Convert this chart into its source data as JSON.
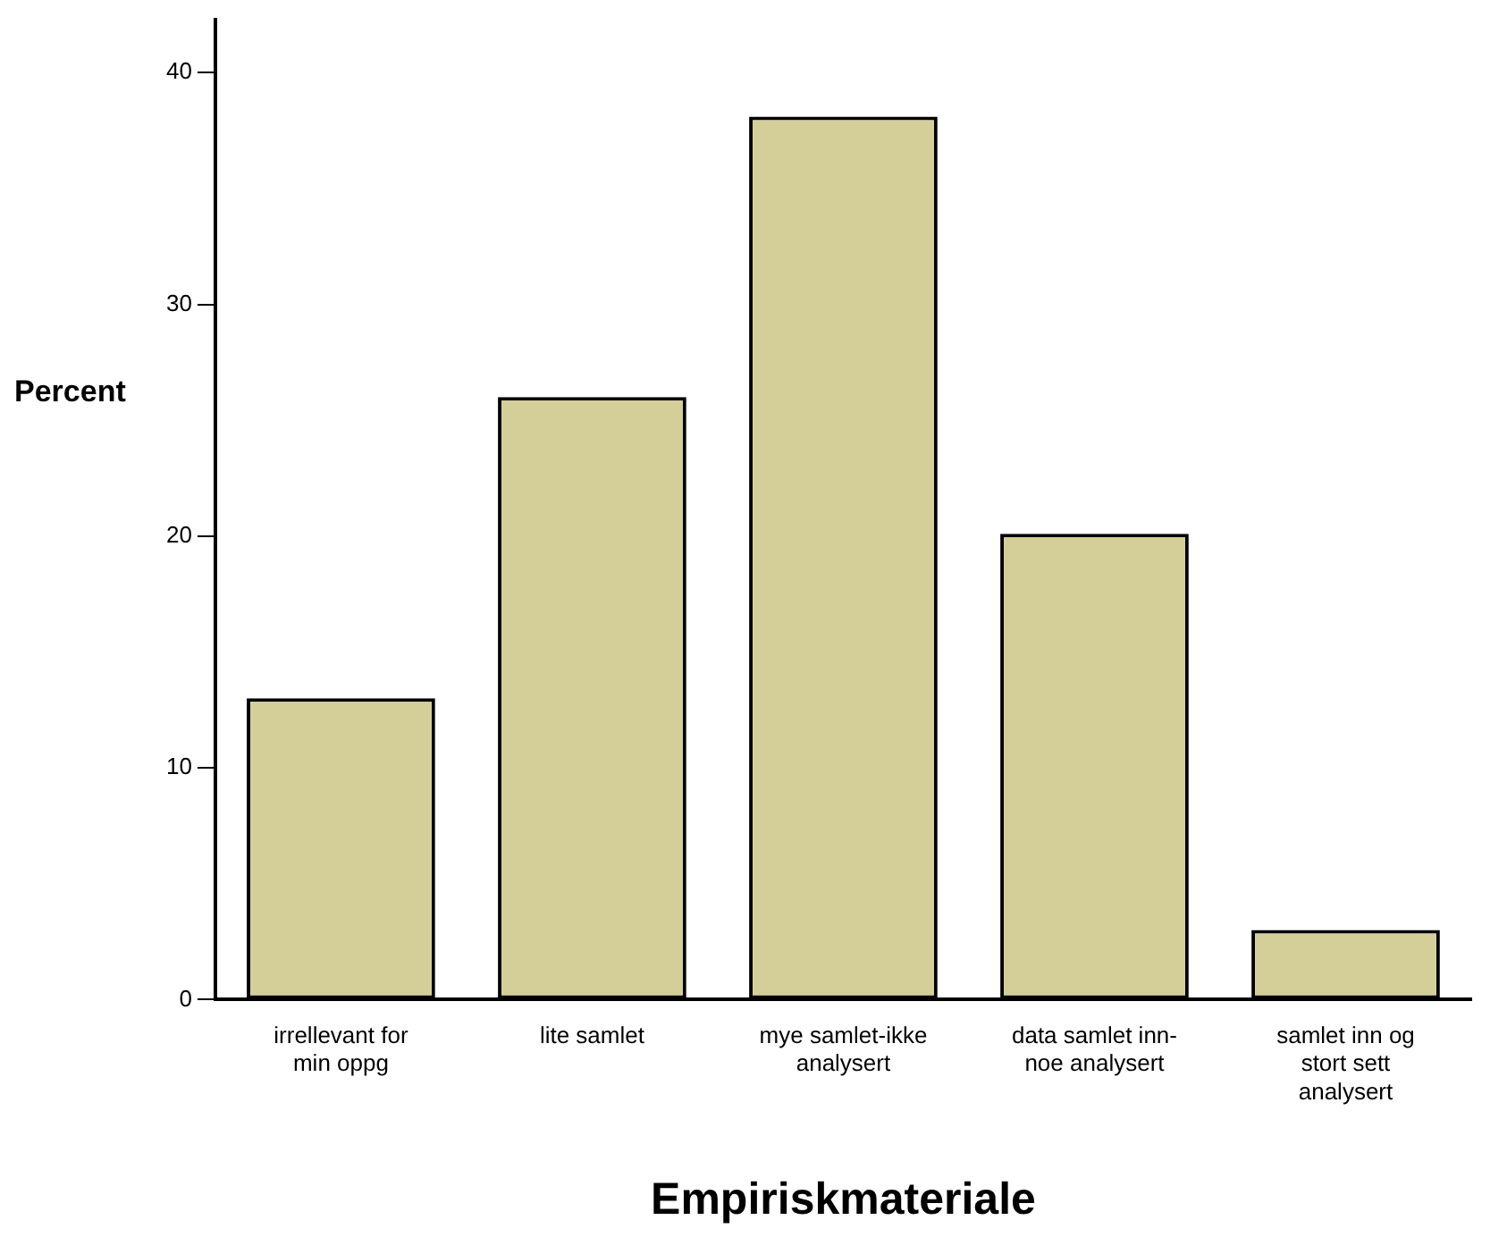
{
  "chart_data": {
    "type": "bar",
    "categories": [
      "irrellevant for\nmin oppg",
      "lite samlet",
      "mye samlet-ikke\nanalysert",
      "data samlet inn-\nnoe analysert",
      "samlet inn og\nstort sett\nanalysert"
    ],
    "values": [
      13.0,
      26.0,
      38.1,
      20.1,
      3.0
    ],
    "color": "#d4cf99",
    "xlabel": "Empiriskmateriale",
    "ylabel": "Percent",
    "ylim": [
      0,
      42.3
    ],
    "yticks": [
      0,
      10,
      20,
      30,
      40
    ],
    "grid": false,
    "legend": false
  }
}
